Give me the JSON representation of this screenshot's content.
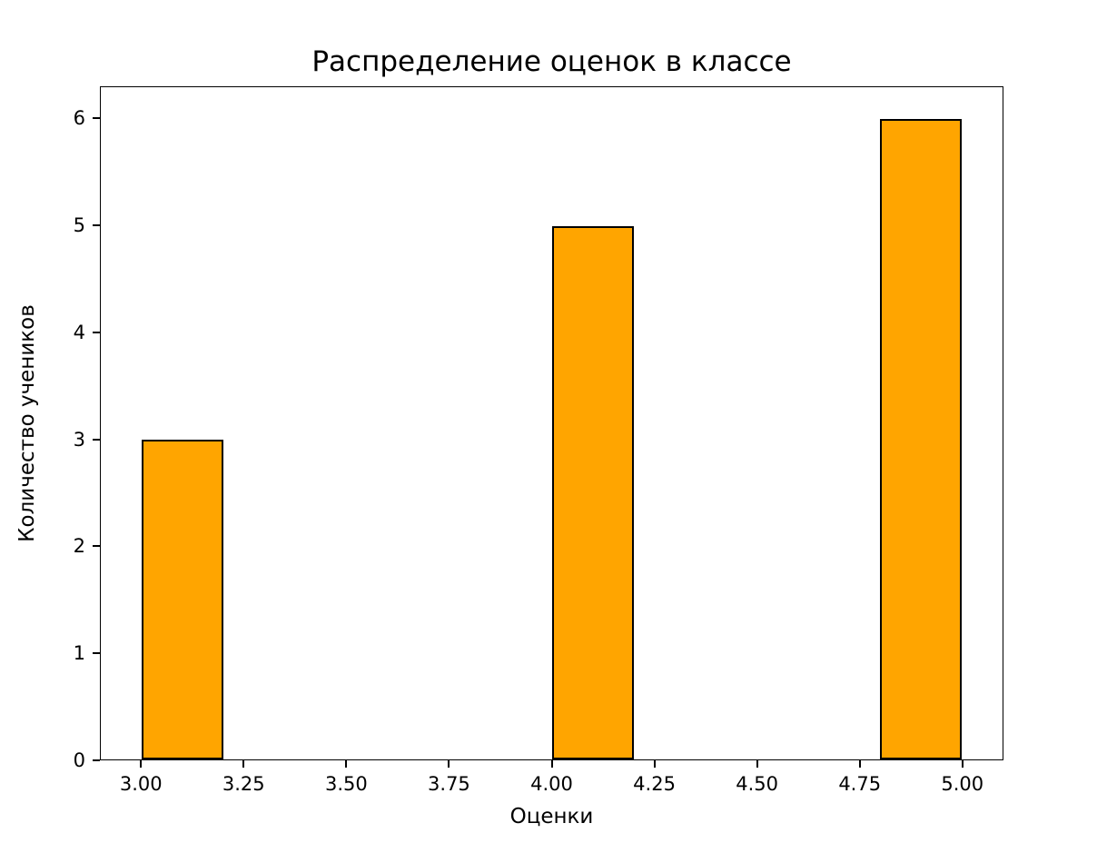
{
  "chart_data": {
    "type": "bar",
    "title": "Распределение оценок в классе",
    "xlabel": "Оценки",
    "ylabel": "Количество учеников",
    "bars": [
      {
        "x_start": 3.0,
        "x_end": 3.2,
        "value": 3
      },
      {
        "x_start": 4.0,
        "x_end": 4.2,
        "value": 5
      },
      {
        "x_start": 4.8,
        "x_end": 5.0,
        "value": 6
      }
    ],
    "bar_color": "#FFA500",
    "bar_edge_color": "#000000",
    "background_color": "#FFFFFF",
    "xlim": [
      2.9,
      5.1
    ],
    "ylim": [
      0,
      6.3
    ],
    "x_ticks": [
      3.0,
      3.25,
      3.5,
      3.75,
      4.0,
      4.25,
      4.5,
      4.75,
      5.0
    ],
    "x_tick_labels": [
      "3.00",
      "3.25",
      "3.50",
      "3.75",
      "4.00",
      "4.25",
      "4.50",
      "4.75",
      "5.00"
    ],
    "y_ticks": [
      0,
      1,
      2,
      3,
      4,
      5,
      6
    ],
    "y_tick_labels": [
      "0",
      "1",
      "2",
      "3",
      "4",
      "5",
      "6"
    ],
    "grid": false,
    "legend": null
  }
}
